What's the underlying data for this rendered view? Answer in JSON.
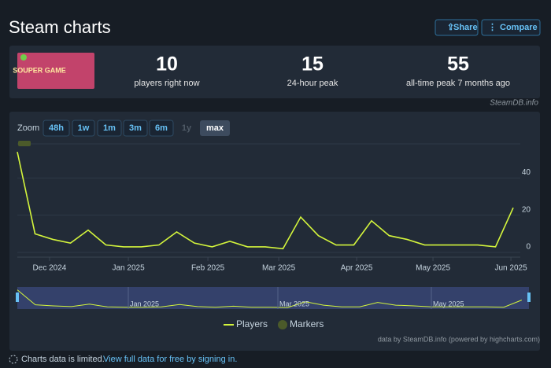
{
  "header": {
    "title": "Steam charts",
    "share": "Share",
    "compare": "Compare"
  },
  "game_image_text": "SOUPER GAME",
  "stats": [
    {
      "value": "10",
      "label": "players right now"
    },
    {
      "value": "15",
      "label": "24-hour peak"
    },
    {
      "value": "55",
      "label": "all-time peak 7 months ago"
    }
  ],
  "watermark": "SteamDB.info",
  "zoom": {
    "label": "Zoom",
    "buttons": [
      "48h",
      "1w",
      "1m",
      "3m",
      "6m",
      "1y",
      "max"
    ]
  },
  "chart_data": {
    "type": "line",
    "x": [
      0,
      1,
      2,
      3,
      4,
      5,
      6,
      7,
      8,
      9,
      10,
      11,
      12,
      13,
      14,
      15,
      16,
      17,
      18,
      19,
      20,
      21,
      22,
      23,
      24,
      25,
      26,
      27,
      28
    ],
    "series": [
      {
        "name": "Players",
        "color": "#d4f53c",
        "values": [
          54,
          10,
          7,
          5,
          12,
          4,
          3,
          3,
          4,
          11,
          5,
          3,
          6,
          3,
          3,
          2,
          19,
          9,
          4,
          4,
          17,
          9,
          7,
          4,
          4,
          4,
          4,
          3,
          24
        ]
      }
    ],
    "markers": {
      "name": "Markers",
      "color": "#4b5a2a"
    },
    "xlim": [
      0,
      28.4
    ],
    "xticks": [
      {
        "value": 1.82,
        "label": "Dec 2024"
      },
      {
        "value": 6.27,
        "label": "Jan 2025"
      },
      {
        "value": 10.76,
        "label": "Feb 2025"
      },
      {
        "value": 14.76,
        "label": "Mar 2025"
      },
      {
        "value": 19.16,
        "label": "Apr 2025"
      },
      {
        "value": 23.47,
        "label": "May 2025"
      },
      {
        "value": 27.87,
        "label": "Jun 2025"
      }
    ],
    "ylim": [
      0,
      60
    ],
    "yticks": [
      0,
      20,
      40
    ],
    "grid": true,
    "navigator_labels": [
      "Jan 2025",
      "Mar 2025",
      "May 2025"
    ]
  },
  "credit": "data by SteamDB.info (powered by highcharts.com)",
  "footer": {
    "notice": "Charts data is limited.",
    "link": "View full data for free by signing in."
  }
}
